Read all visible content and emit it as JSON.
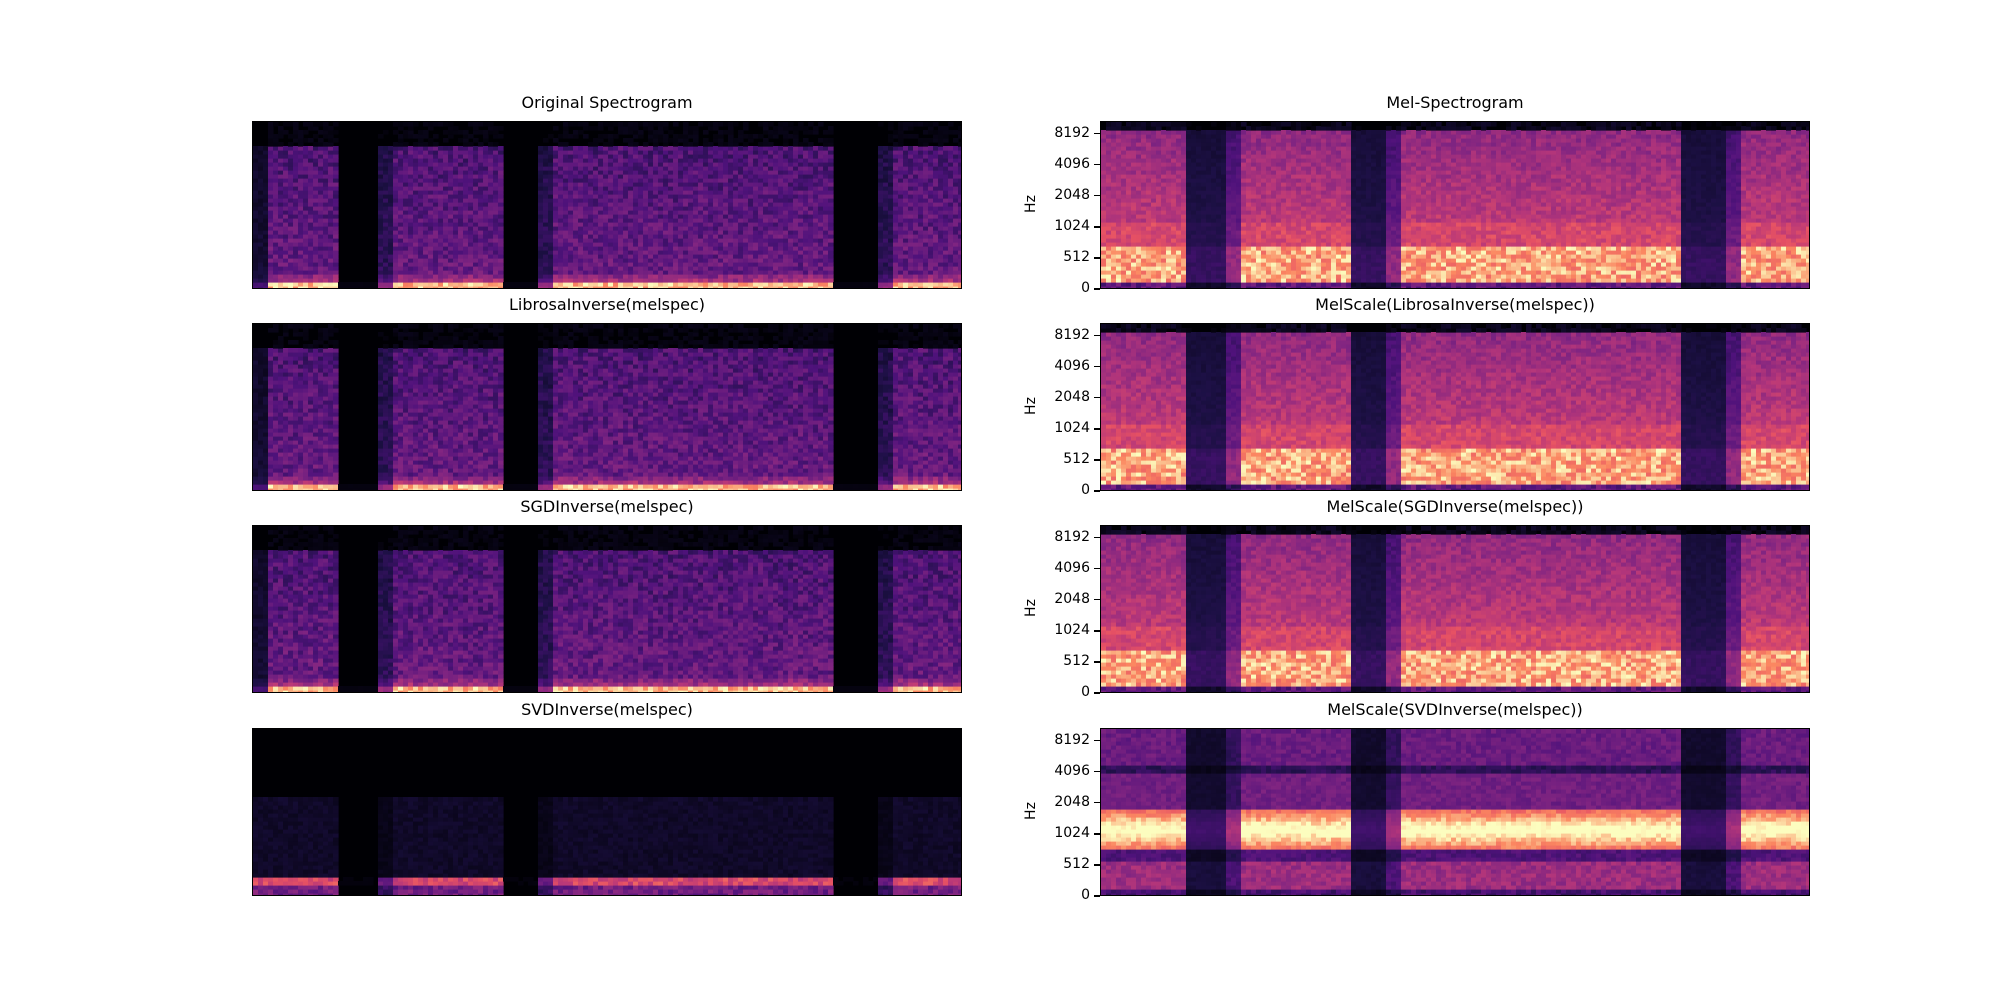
{
  "chart_data": [
    {
      "type": "heatmap",
      "title": "Original Spectrogram",
      "scale": "linear",
      "colormap": "magma",
      "description_band": "strongest energy at lowest frequencies",
      "xlim": [
        0,
        1
      ],
      "ylim": [
        0,
        1
      ]
    },
    {
      "type": "heatmap",
      "title": "Mel-Spectrogram",
      "scale": "mel",
      "colormap": "magma",
      "ylabel": "Hz",
      "yticks": [
        "0",
        "512",
        "1024",
        "2048",
        "4096",
        "8192"
      ]
    },
    {
      "type": "heatmap",
      "title": "LibrosaInverse(melspec)",
      "scale": "linear",
      "colormap": "magma"
    },
    {
      "type": "heatmap",
      "title": "MelScale(LibrosaInverse(melspec))",
      "scale": "mel",
      "colormap": "magma",
      "ylabel": "Hz",
      "yticks": [
        "0",
        "512",
        "1024",
        "2048",
        "4096",
        "8192"
      ]
    },
    {
      "type": "heatmap",
      "title": "SGDInverse(melspec)",
      "scale": "linear",
      "colormap": "magma"
    },
    {
      "type": "heatmap",
      "title": "MelScale(SGDInverse(melspec))",
      "scale": "mel",
      "colormap": "magma",
      "ylabel": "Hz",
      "yticks": [
        "0",
        "512",
        "1024",
        "2048",
        "4096",
        "8192"
      ]
    },
    {
      "type": "heatmap",
      "title": "SVDInverse(melspec)",
      "scale": "linear",
      "colormap": "magma"
    },
    {
      "type": "heatmap",
      "title": "MelScale(SVDInverse(melspec))",
      "scale": "mel",
      "colormap": "magma",
      "ylabel": "Hz",
      "yticks": [
        "0",
        "512",
        "1024",
        "2048",
        "4096",
        "8192"
      ]
    }
  ]
}
